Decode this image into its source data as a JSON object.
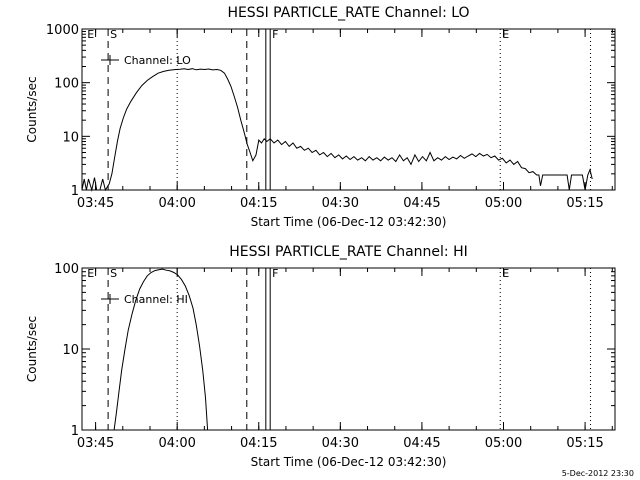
{
  "footer_stamp": "5-Dec-2012 23:30",
  "chart_data": [
    {
      "type": "line",
      "title": "HESSI PARTICLE_RATE Channel: LO",
      "xlabel": "Start Time (06-Dec-12 03:42:30)",
      "ylabel": "Counts/sec",
      "yscale": "log",
      "ylim": [
        1,
        1000
      ],
      "xlim_minutes": [
        0,
        98
      ],
      "x_ticks": [
        {
          "t": 2.5,
          "label": "03:45"
        },
        {
          "t": 17.5,
          "label": "04:00"
        },
        {
          "t": 32.5,
          "label": "04:15"
        },
        {
          "t": 47.5,
          "label": "04:30"
        },
        {
          "t": 62.5,
          "label": "04:45"
        },
        {
          "t": 77.5,
          "label": "05:00"
        },
        {
          "t": 92.5,
          "label": "05:15"
        }
      ],
      "y_ticks": [
        {
          "v": 1,
          "label": "1"
        },
        {
          "v": 10,
          "label": "10"
        },
        {
          "v": 100,
          "label": "100"
        },
        {
          "v": 1000,
          "label": "1000"
        }
      ],
      "legend": "Channel: LO",
      "markers": [
        {
          "t": 0.6,
          "label": "E",
          "style": "none"
        },
        {
          "t": 4.8,
          "label": "S",
          "style": "dashed"
        },
        {
          "t": 30.3,
          "label": "",
          "style": "dashed"
        },
        {
          "t": 33.8,
          "label": "",
          "style": "solid"
        },
        {
          "t": 34.6,
          "label": "F",
          "style": "solid"
        },
        {
          "t": 76.9,
          "label": "E",
          "style": "none"
        }
      ],
      "dotted_lines": [
        17.5,
        76.9,
        93.5
      ],
      "series": [
        {
          "name": "Channel: LO",
          "points": [
            [
              0.0,
              1
            ],
            [
              0.4,
              1.6
            ],
            [
              0.8,
              1
            ],
            [
              1.2,
              1.6
            ],
            [
              1.8,
              1
            ],
            [
              2.3,
              1.7
            ],
            [
              2.7,
              1
            ],
            [
              3.3,
              1
            ],
            [
              3.8,
              1.6
            ],
            [
              4.3,
              1
            ],
            [
              5.0,
              1.3
            ],
            [
              5.5,
              2
            ],
            [
              6.0,
              4
            ],
            [
              6.5,
              8
            ],
            [
              7.0,
              14
            ],
            [
              7.6,
              22
            ],
            [
              8.2,
              32
            ],
            [
              9.0,
              45
            ],
            [
              10.0,
              65
            ],
            [
              11.0,
              88
            ],
            [
              12.0,
              110
            ],
            [
              13.0,
              130
            ],
            [
              14.0,
              150
            ],
            [
              15.0,
              162
            ],
            [
              16.0,
              170
            ],
            [
              17.0,
              175
            ],
            [
              18.0,
              178
            ],
            [
              18.8,
              182
            ],
            [
              19.5,
              176
            ],
            [
              20.3,
              182
            ],
            [
              21.0,
              174
            ],
            [
              21.8,
              179
            ],
            [
              22.5,
              176
            ],
            [
              23.3,
              180
            ],
            [
              24.0,
              173
            ],
            [
              24.8,
              176
            ],
            [
              25.5,
              170
            ],
            [
              26.2,
              150
            ],
            [
              26.8,
              115
            ],
            [
              27.4,
              85
            ],
            [
              28.0,
              55
            ],
            [
              28.6,
              35
            ],
            [
              29.2,
              20
            ],
            [
              29.8,
              12
            ],
            [
              30.4,
              7
            ],
            [
              30.9,
              5
            ],
            [
              31.4,
              3.5
            ],
            [
              32.0,
              4.5
            ],
            [
              32.5,
              8.5
            ],
            [
              33.0,
              7.5
            ],
            [
              33.5,
              9
            ],
            [
              34.0,
              8
            ],
            [
              34.6,
              9
            ],
            [
              35.3,
              7.5
            ],
            [
              36.0,
              8.5
            ],
            [
              36.7,
              7
            ],
            [
              37.4,
              8
            ],
            [
              38.1,
              6.5
            ],
            [
              38.8,
              7.5
            ],
            [
              39.5,
              6
            ],
            [
              40.2,
              6.5
            ],
            [
              40.9,
              5.5
            ],
            [
              41.6,
              6
            ],
            [
              42.3,
              5
            ],
            [
              43.0,
              5.5
            ],
            [
              43.7,
              4.5
            ],
            [
              44.4,
              5
            ],
            [
              45.1,
              4.2
            ],
            [
              45.8,
              4.8
            ],
            [
              46.5,
              4
            ],
            [
              47.2,
              4.5
            ],
            [
              47.9,
              3.8
            ],
            [
              48.6,
              4.3
            ],
            [
              49.3,
              3.7
            ],
            [
              50.0,
              4.2
            ],
            [
              50.7,
              3.6
            ],
            [
              51.4,
              4
            ],
            [
              52.1,
              3.5
            ],
            [
              52.8,
              4.2
            ],
            [
              53.5,
              3.6
            ],
            [
              54.2,
              4
            ],
            [
              54.9,
              3.5
            ],
            [
              55.6,
              4.1
            ],
            [
              56.3,
              3.6
            ],
            [
              57.0,
              4
            ],
            [
              57.7,
              3.4
            ],
            [
              58.4,
              4.5
            ],
            [
              59.1,
              3.5
            ],
            [
              59.8,
              4
            ],
            [
              60.5,
              3
            ],
            [
              61.2,
              4.5
            ],
            [
              61.9,
              3.4
            ],
            [
              62.6,
              4.2
            ],
            [
              63.3,
              3.5
            ],
            [
              64.0,
              5
            ],
            [
              64.7,
              3.5
            ],
            [
              65.4,
              4
            ],
            [
              66.1,
              3.6
            ],
            [
              66.8,
              4.2
            ],
            [
              67.5,
              3.7
            ],
            [
              68.2,
              4.1
            ],
            [
              68.9,
              3.8
            ],
            [
              69.6,
              4.4
            ],
            [
              70.3,
              3.9
            ],
            [
              71.0,
              4.3
            ],
            [
              71.7,
              4.7
            ],
            [
              72.4,
              4.2
            ],
            [
              73.1,
              4.8
            ],
            [
              73.8,
              4.3
            ],
            [
              74.5,
              4.6
            ],
            [
              75.2,
              4
            ],
            [
              75.9,
              4.3
            ],
            [
              76.6,
              3.6
            ],
            [
              77.3,
              3.9
            ],
            [
              78.0,
              3.2
            ],
            [
              78.7,
              3.6
            ],
            [
              79.4,
              3
            ],
            [
              80.1,
              3.4
            ],
            [
              80.8,
              2.6
            ],
            [
              81.5,
              2.5
            ],
            [
              82.2,
              2.1
            ],
            [
              82.9,
              2.2
            ],
            [
              83.6,
              1.9
            ],
            [
              84.0,
              1.9
            ],
            [
              84.3,
              1.2
            ],
            [
              84.7,
              1.9
            ],
            [
              85.5,
              1.9
            ],
            [
              86.5,
              1.9
            ],
            [
              87.5,
              1.9
            ],
            [
              88.5,
              1.9
            ],
            [
              89.2,
              1.9
            ],
            [
              89.6,
              1
            ],
            [
              90.0,
              1.9
            ],
            [
              91.0,
              1.9
            ],
            [
              92.0,
              1.9
            ],
            [
              92.5,
              1
            ],
            [
              93.0,
              1.9
            ],
            [
              93.4,
              2.4
            ],
            [
              93.8,
              1.6
            ]
          ]
        }
      ]
    },
    {
      "type": "line",
      "title": "HESSI PARTICLE_RATE Channel: HI",
      "xlabel": "Start Time (06-Dec-12 03:42:30)",
      "ylabel": "Counts/sec",
      "yscale": "log",
      "ylim": [
        1,
        100
      ],
      "xlim_minutes": [
        0,
        98
      ],
      "x_ticks": [
        {
          "t": 2.5,
          "label": "03:45"
        },
        {
          "t": 17.5,
          "label": "04:00"
        },
        {
          "t": 32.5,
          "label": "04:15"
        },
        {
          "t": 47.5,
          "label": "04:30"
        },
        {
          "t": 62.5,
          "label": "04:45"
        },
        {
          "t": 77.5,
          "label": "05:00"
        },
        {
          "t": 92.5,
          "label": "05:15"
        }
      ],
      "y_ticks": [
        {
          "v": 1,
          "label": "1"
        },
        {
          "v": 10,
          "label": "10"
        },
        {
          "v": 100,
          "label": "100"
        }
      ],
      "legend": "Channel: HI",
      "markers": [
        {
          "t": 0.6,
          "label": "E",
          "style": "none"
        },
        {
          "t": 4.8,
          "label": "S",
          "style": "dashed"
        },
        {
          "t": 30.3,
          "label": "",
          "style": "dashed"
        },
        {
          "t": 33.8,
          "label": "",
          "style": "solid"
        },
        {
          "t": 34.6,
          "label": "F",
          "style": "solid"
        },
        {
          "t": 76.9,
          "label": "E",
          "style": "none"
        }
      ],
      "dotted_lines": [
        17.5,
        76.9,
        93.5
      ],
      "series": [
        {
          "name": "Channel: HI",
          "points": [
            [
              5.9,
              1
            ],
            [
              6.3,
              1.6
            ],
            [
              6.8,
              3
            ],
            [
              7.3,
              5.5
            ],
            [
              7.9,
              10
            ],
            [
              8.5,
              17
            ],
            [
              9.2,
              27
            ],
            [
              9.9,
              40
            ],
            [
              10.6,
              55
            ],
            [
              11.3,
              68
            ],
            [
              12.0,
              80
            ],
            [
              12.7,
              88
            ],
            [
              13.4,
              93
            ],
            [
              14.1,
              95
            ],
            [
              14.8,
              97
            ],
            [
              15.5,
              94
            ],
            [
              16.2,
              92
            ],
            [
              16.9,
              88
            ],
            [
              17.6,
              82
            ],
            [
              18.3,
              72
            ],
            [
              19.0,
              60
            ],
            [
              19.7,
              46
            ],
            [
              20.4,
              32
            ],
            [
              21.0,
              20
            ],
            [
              21.6,
              11
            ],
            [
              22.2,
              5.5
            ],
            [
              22.7,
              2.5
            ],
            [
              23.1,
              1
            ]
          ]
        }
      ]
    }
  ]
}
